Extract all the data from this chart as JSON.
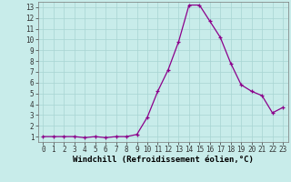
{
  "x": [
    0,
    1,
    2,
    3,
    4,
    5,
    6,
    7,
    8,
    9,
    10,
    11,
    12,
    13,
    14,
    15,
    16,
    17,
    18,
    19,
    20,
    21,
    22,
    23
  ],
  "y": [
    1,
    1,
    1,
    1,
    0.9,
    1,
    0.9,
    1,
    1,
    1.2,
    2.8,
    5.2,
    7.2,
    9.8,
    13.2,
    13.2,
    11.7,
    10.2,
    7.8,
    5.8,
    5.2,
    4.8,
    3.2,
    3.7
  ],
  "line_color": "#8B008B",
  "marker_color": "#8B008B",
  "background_color": "#c8ecea",
  "grid_color": "#a8d4d2",
  "xlabel": "Windchill (Refroidissement éolien,°C)",
  "xlabel_fontsize": 6.5,
  "xlim": [
    -0.5,
    23.5
  ],
  "ylim": [
    0.5,
    13.5
  ],
  "yticks": [
    1,
    2,
    3,
    4,
    5,
    6,
    7,
    8,
    9,
    10,
    11,
    12,
    13
  ],
  "xticks": [
    0,
    1,
    2,
    3,
    4,
    5,
    6,
    7,
    8,
    9,
    10,
    11,
    12,
    13,
    14,
    15,
    16,
    17,
    18,
    19,
    20,
    21,
    22,
    23
  ],
  "tick_fontsize": 5.5,
  "line_width": 0.9,
  "marker_size": 3.5
}
